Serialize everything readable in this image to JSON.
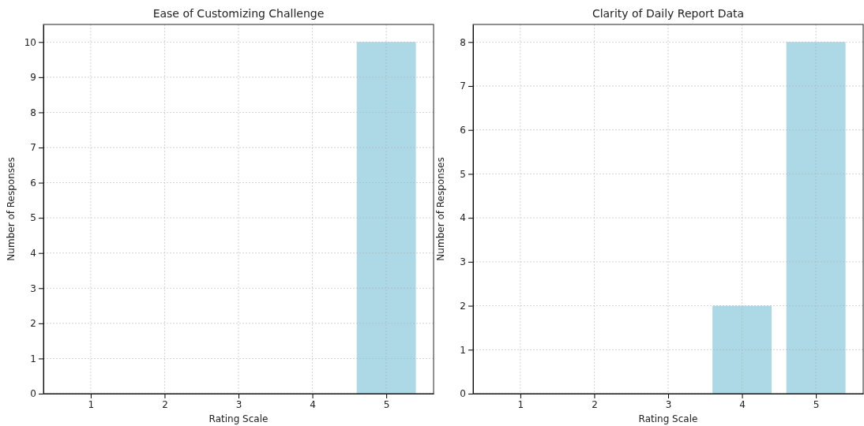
{
  "chart_data": [
    {
      "type": "bar",
      "title": "Ease of Customizing Challenge",
      "xlabel": "Rating Scale",
      "ylabel": "Number of Responses",
      "x": [
        1,
        2,
        3,
        4,
        5
      ],
      "values": [
        0,
        0,
        0,
        0,
        10
      ],
      "color": "#add8e6",
      "xlim": [
        0.36,
        5.64
      ],
      "xticks": [
        1,
        2,
        3,
        4,
        5
      ],
      "ylim": [
        0,
        10.5
      ],
      "yticks": [
        0,
        1,
        2,
        3,
        4,
        5,
        6,
        7,
        8,
        9,
        10
      ],
      "grid": true
    },
    {
      "type": "bar",
      "title": "Clarity of Daily Report Data",
      "xlabel": "Rating Scale",
      "ylabel": "Number of Responses",
      "x": [
        1,
        2,
        3,
        4,
        5
      ],
      "values": [
        0,
        0,
        0,
        2,
        8
      ],
      "color": "#add8e6",
      "xlim": [
        0.36,
        5.64
      ],
      "xticks": [
        1,
        2,
        3,
        4,
        5
      ],
      "ylim": [
        0,
        8.4
      ],
      "yticks": [
        0,
        1,
        2,
        3,
        4,
        5,
        6,
        7,
        8
      ],
      "grid": true
    }
  ]
}
